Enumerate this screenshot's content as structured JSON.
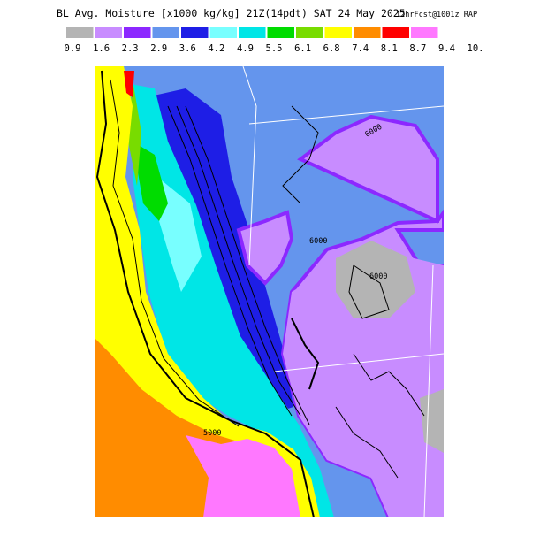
{
  "header": {
    "title": "BL Avg. Moisture [x1000 kg/kg] 21Z(14pdt) SAT 24 May 2025",
    "forecast": "12hrFcst@1001z RAP"
  },
  "legend": {
    "colors": [
      "#b4b4b4",
      "#c88cff",
      "#8c28ff",
      "#6495ed",
      "#1e1ee6",
      "#78ffff",
      "#00e6e6",
      "#00dc00",
      "#78dc00",
      "#ffff00",
      "#ff8c00",
      "#ff0000",
      "#ff78ff"
    ],
    "labels": [
      "0.9",
      "1.6",
      "2.3",
      "2.9",
      "3.6",
      "4.2",
      "4.9",
      "5.5",
      "6.1",
      "6.8",
      "7.4",
      "8.1",
      "8.7",
      "9.4",
      "10."
    ]
  },
  "contour_labels": [
    "6000",
    "6000",
    "6000",
    "5000"
  ]
}
